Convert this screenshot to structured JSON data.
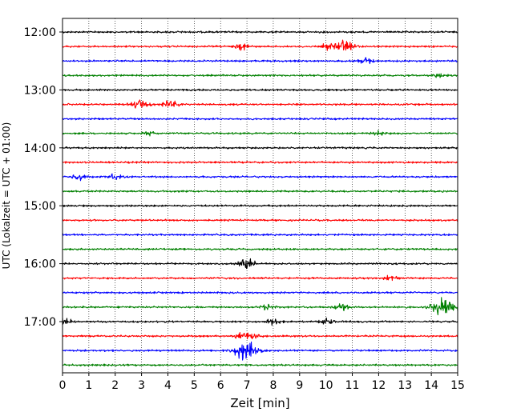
{
  "chart_data": {
    "type": "line",
    "title": "",
    "xlabel": "Zeit  [min]",
    "ylabel": "UTC (Lokalzeit = UTC + 01:00)",
    "xlim": [
      0,
      15
    ],
    "x_ticks": [
      "0",
      "1",
      "2",
      "3",
      "4",
      "5",
      "6",
      "7",
      "8",
      "9",
      "10",
      "11",
      "12",
      "13",
      "14",
      "15"
    ],
    "y_ticks": [
      "12:00",
      "13:00",
      "14:00",
      "15:00",
      "16:00",
      "17:00"
    ],
    "grid": "vertical dotted",
    "trace_colors": [
      "#000000",
      "#ff0000",
      "#0000ff",
      "#008000"
    ],
    "traces_start": "12:00",
    "trace_interval_min": 15,
    "trace_count": 24,
    "events": [
      {
        "trace": 1,
        "x": 6.8,
        "amp": 0.5
      },
      {
        "trace": 1,
        "x": 10.05,
        "amp": 0.5
      },
      {
        "trace": 1,
        "x": 10.7,
        "amp": 0.9
      },
      {
        "trace": 2,
        "x": 11.5,
        "amp": 0.45
      },
      {
        "trace": 3,
        "x": 14.3,
        "amp": 0.35
      },
      {
        "trace": 5,
        "x": 3.0,
        "amp": 0.8
      },
      {
        "trace": 5,
        "x": 4.1,
        "amp": 0.55
      },
      {
        "trace": 7,
        "x": 3.3,
        "amp": 0.3
      },
      {
        "trace": 7,
        "x": 12.0,
        "amp": 0.3
      },
      {
        "trace": 10,
        "x": 0.6,
        "amp": 0.5
      },
      {
        "trace": 10,
        "x": 2.0,
        "amp": 0.4
      },
      {
        "trace": 16,
        "x": 7.0,
        "amp": 0.75
      },
      {
        "trace": 17,
        "x": 12.5,
        "amp": 0.45
      },
      {
        "trace": 19,
        "x": 7.8,
        "amp": 0.4
      },
      {
        "trace": 19,
        "x": 10.6,
        "amp": 0.6
      },
      {
        "trace": 19,
        "x": 14.5,
        "amp": 1.5
      },
      {
        "trace": 20,
        "x": 0.1,
        "amp": 0.45
      },
      {
        "trace": 20,
        "x": 8.0,
        "amp": 0.45
      },
      {
        "trace": 20,
        "x": 10.0,
        "amp": 0.55
      },
      {
        "trace": 21,
        "x": 6.8,
        "amp": 0.45
      },
      {
        "trace": 21,
        "x": 7.2,
        "amp": 0.45
      },
      {
        "trace": 22,
        "x": 6.85,
        "amp": 1.1
      },
      {
        "trace": 22,
        "x": 7.25,
        "amp": 0.9
      }
    ]
  }
}
